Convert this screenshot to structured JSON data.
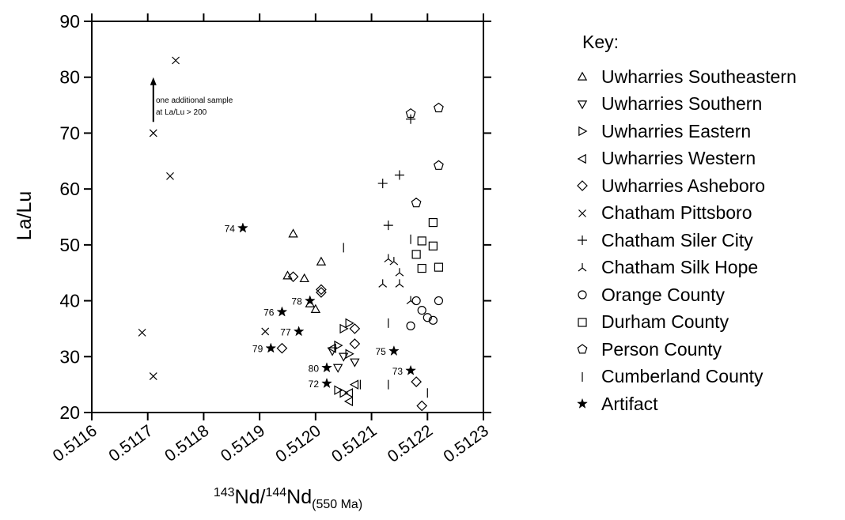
{
  "chart_data": {
    "type": "scatter",
    "title": "",
    "xlabel": {
      "sup1": "143",
      "nd1": "Nd/",
      "sup2": "144",
      "nd2": "Nd",
      "sub": "(550 Ma)"
    },
    "ylabel": "La/Lu",
    "xlim": [
      0.5116,
      0.5123
    ],
    "ylim": [
      20,
      90
    ],
    "xticks": [
      "0.5116",
      "0.5117",
      "0.5118",
      "0.5119",
      "0.5120",
      "0.5121",
      "0.5122",
      "0.5123"
    ],
    "yticks": [
      "20",
      "30",
      "40",
      "50",
      "60",
      "70",
      "80",
      "90"
    ],
    "legend_title": "Key:",
    "legend_placement": "right",
    "annotation": {
      "line1": "one additional sample",
      "line2": "at La/Lu > 200",
      "x": 0.51171,
      "y_from": 72,
      "y_to": 80
    },
    "series": [
      {
        "name": "Uwharries Southeastern",
        "marker": "triangle-up",
        "points": [
          [
            0.51196,
            52
          ],
          [
            0.51201,
            47
          ],
          [
            0.51195,
            44.5
          ],
          [
            0.51198,
            44
          ],
          [
            0.512,
            38.5
          ],
          [
            0.51199,
            39.5
          ]
        ]
      },
      {
        "name": "Uwharries Southern",
        "marker": "triangle-down",
        "points": [
          [
            0.51203,
            31
          ],
          [
            0.51205,
            30
          ],
          [
            0.51204,
            28
          ],
          [
            0.51207,
            29
          ]
        ]
      },
      {
        "name": "Uwharries Eastern",
        "marker": "triangle-right",
        "points": [
          [
            0.51206,
            36
          ],
          [
            0.51205,
            35
          ],
          [
            0.51206,
            30.5
          ],
          [
            0.51204,
            24
          ],
          [
            0.51205,
            23.5
          ],
          [
            0.51204,
            32
          ]
        ]
      },
      {
        "name": "Uwharries Western",
        "marker": "triangle-left",
        "points": [
          [
            0.51207,
            25
          ],
          [
            0.51206,
            22
          ],
          [
            0.51206,
            23.5
          ],
          [
            0.51203,
            31.5
          ]
        ]
      },
      {
        "name": "Uwharries Asheboro",
        "marker": "diamond",
        "points": [
          [
            0.51196,
            44.3
          ],
          [
            0.51201,
            42
          ],
          [
            0.51201,
            41.5
          ],
          [
            0.51194,
            31.5
          ],
          [
            0.51207,
            35
          ],
          [
            0.51207,
            32.3
          ],
          [
            0.51218,
            25.5
          ],
          [
            0.51219,
            21.2
          ]
        ]
      },
      {
        "name": "Chatham Pittsboro",
        "marker": "x",
        "points": [
          [
            0.51175,
            83
          ],
          [
            0.51171,
            70
          ],
          [
            0.51174,
            62.3
          ],
          [
            0.51169,
            34.3
          ],
          [
            0.51171,
            26.5
          ],
          [
            0.51191,
            34.5
          ]
        ]
      },
      {
        "name": "Chatham Siler City",
        "marker": "plus",
        "points": [
          [
            0.51217,
            72.5
          ],
          [
            0.51215,
            62.5
          ],
          [
            0.51212,
            61
          ],
          [
            0.51213,
            53.5
          ]
        ]
      },
      {
        "name": "Chatham Silk Hope",
        "marker": "tripod",
        "points": [
          [
            0.51213,
            47.5
          ],
          [
            0.51214,
            47
          ],
          [
            0.51215,
            45
          ],
          [
            0.51212,
            43
          ],
          [
            0.51215,
            43
          ],
          [
            0.51217,
            40
          ]
        ]
      },
      {
        "name": "Orange County",
        "marker": "circle",
        "points": [
          [
            0.51218,
            40
          ],
          [
            0.51219,
            38.3
          ],
          [
            0.5122,
            37
          ],
          [
            0.51221,
            36.5
          ],
          [
            0.51217,
            35.5
          ],
          [
            0.51222,
            40
          ]
        ]
      },
      {
        "name": "Durham County",
        "marker": "square",
        "points": [
          [
            0.51221,
            54
          ],
          [
            0.51219,
            50.7
          ],
          [
            0.51221,
            49.8
          ],
          [
            0.51218,
            48.3
          ],
          [
            0.51219,
            45.8
          ],
          [
            0.51222,
            46
          ]
        ]
      },
      {
        "name": "Person County",
        "marker": "pentagon",
        "points": [
          [
            0.51222,
            74.5
          ],
          [
            0.51217,
            73.5
          ],
          [
            0.51222,
            64.2
          ],
          [
            0.51218,
            57.5
          ]
        ]
      },
      {
        "name": "Cumberland County",
        "marker": "vline",
        "points": [
          [
            0.51205,
            49.5
          ],
          [
            0.51217,
            51
          ],
          [
            0.51213,
            36
          ],
          [
            0.51208,
            25
          ],
          [
            0.51213,
            25
          ],
          [
            0.5122,
            23.5
          ]
        ]
      },
      {
        "name": "Artifact",
        "marker": "star",
        "points": [
          [
            0.51187,
            53,
            "74"
          ],
          [
            0.51194,
            38,
            "76"
          ],
          [
            0.51199,
            40,
            "78"
          ],
          [
            0.51197,
            34.5,
            "77"
          ],
          [
            0.51192,
            31.5,
            "79"
          ],
          [
            0.51202,
            28,
            "80"
          ],
          [
            0.51202,
            25.2,
            "72"
          ],
          [
            0.51214,
            31,
            "75"
          ],
          [
            0.51217,
            27.5,
            "73"
          ]
        ]
      }
    ]
  }
}
